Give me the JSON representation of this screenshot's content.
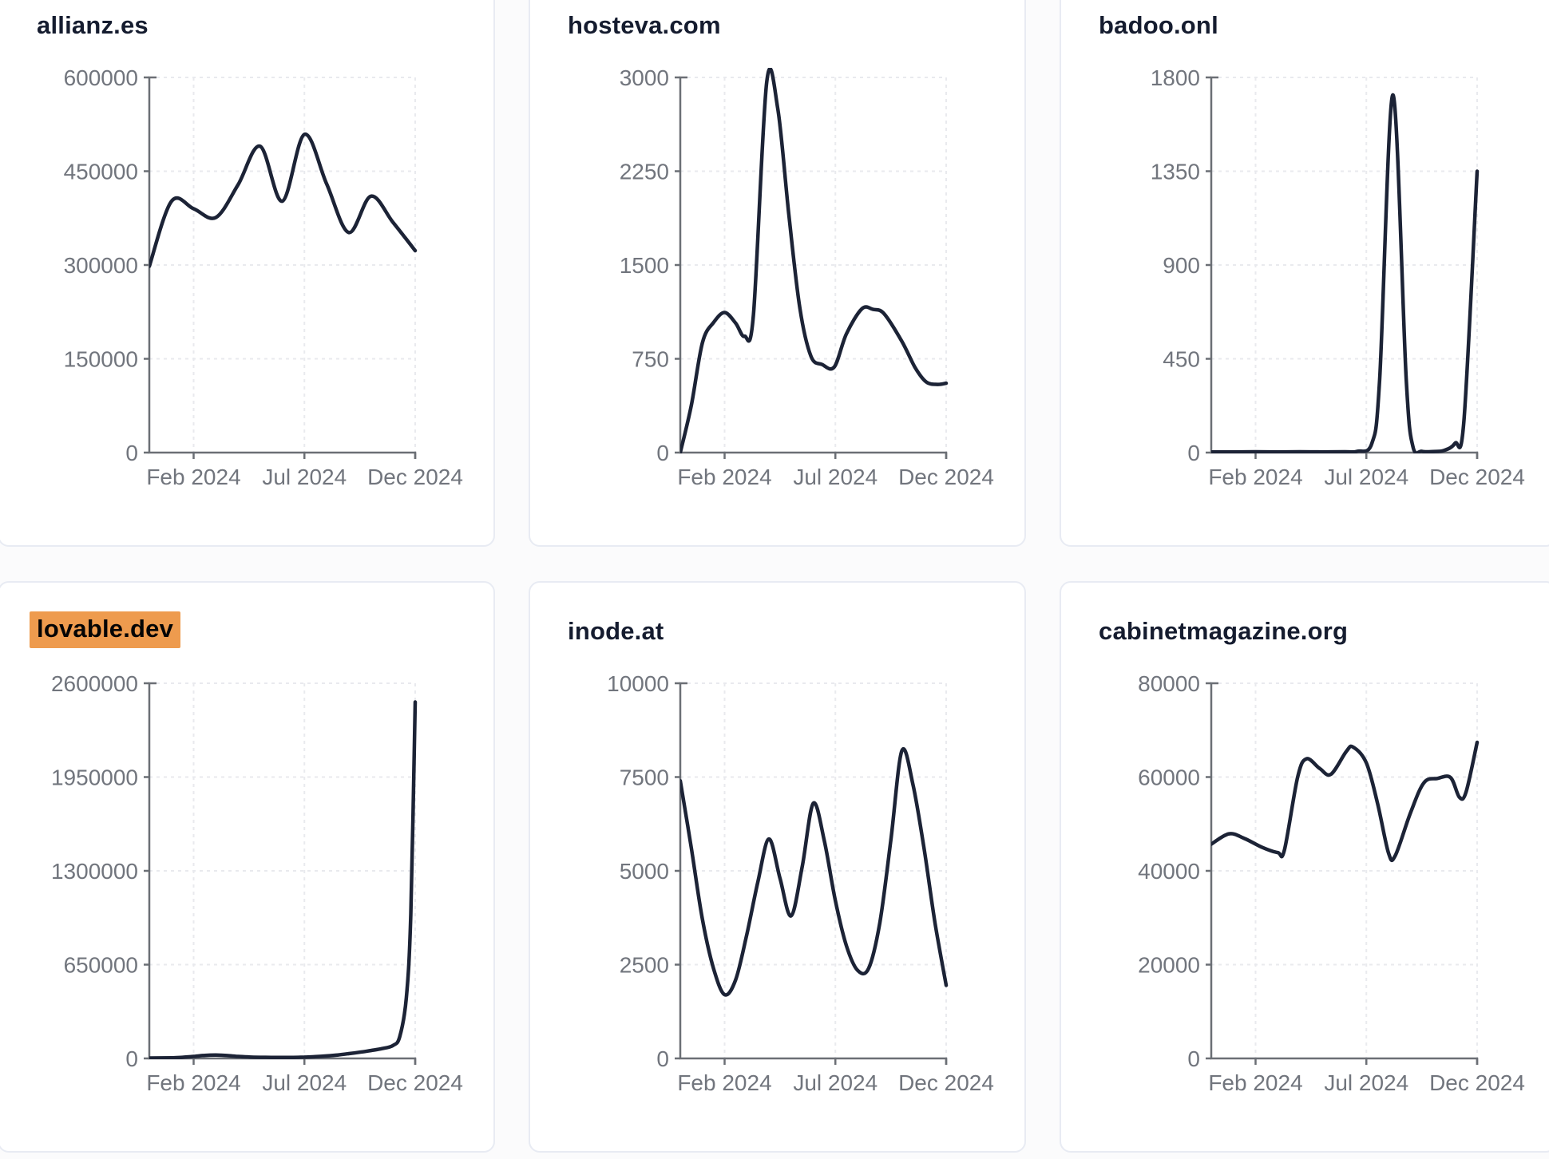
{
  "page": {
    "background_color": "#fbfbfc",
    "card_background": "#ffffff",
    "card_border_color": "#e8ebf3",
    "title_color": "#151c2f",
    "highlight_color": "#ee9b4e",
    "line_color": "#1c2336",
    "axis_color": "#6b6f75",
    "tick_label_color": "#71757d",
    "gridline_color": "#e9eaee"
  },
  "chart_data": [
    {
      "type": "line",
      "title": "allianz.es",
      "highlighted": false,
      "ylim": [
        0,
        600000
      ],
      "y_ticks": [
        600000,
        450000,
        300000,
        150000,
        0
      ],
      "x_ticks": [
        {
          "month": 2,
          "label": "Feb 2024"
        },
        {
          "month": 7,
          "label": "Jul 2024"
        },
        {
          "month": 12,
          "label": "Dec 2024"
        }
      ],
      "points": [
        [
          0,
          298000
        ],
        [
          1,
          402000
        ],
        [
          2,
          390000
        ],
        [
          3,
          376000
        ],
        [
          4,
          428000
        ],
        [
          5,
          490000
        ],
        [
          6,
          402000
        ],
        [
          7,
          509000
        ],
        [
          8,
          430000
        ],
        [
          9,
          352000
        ],
        [
          10,
          410000
        ],
        [
          11,
          368000
        ],
        [
          12,
          323000
        ]
      ]
    },
    {
      "type": "line",
      "title": "hosteva.com",
      "highlighted": false,
      "ylim": [
        0,
        3000
      ],
      "y_ticks": [
        3000,
        2250,
        1500,
        750,
        0
      ],
      "x_ticks": [
        {
          "month": 2,
          "label": "Feb 2024"
        },
        {
          "month": 7,
          "label": "Jul 2024"
        },
        {
          "month": 12,
          "label": "Dec 2024"
        }
      ],
      "points": [
        [
          0,
          0
        ],
        [
          0.5,
          380
        ],
        [
          1,
          880
        ],
        [
          1.5,
          1040
        ],
        [
          2,
          1120
        ],
        [
          2.5,
          1035
        ],
        [
          2.9,
          930
        ],
        [
          3.3,
          1100
        ],
        [
          3.9,
          2960
        ],
        [
          4.4,
          2750
        ],
        [
          4.9,
          1900
        ],
        [
          5.4,
          1150
        ],
        [
          5.9,
          770
        ],
        [
          6.4,
          705
        ],
        [
          6.95,
          685
        ],
        [
          7.5,
          950
        ],
        [
          8.2,
          1150
        ],
        [
          8.7,
          1145
        ],
        [
          9.2,
          1110
        ],
        [
          10,
          890
        ],
        [
          10.6,
          680
        ],
        [
          11.1,
          565
        ],
        [
          11.6,
          545
        ],
        [
          12,
          555
        ]
      ]
    },
    {
      "type": "line",
      "title": "badoo.onl",
      "highlighted": false,
      "ylim": [
        0,
        1800
      ],
      "y_ticks": [
        1800,
        1350,
        900,
        450,
        0
      ],
      "x_ticks": [
        {
          "month": 2,
          "label": "Feb 2024"
        },
        {
          "month": 7,
          "label": "Jul 2024"
        },
        {
          "month": 12,
          "label": "Dec 2024"
        }
      ],
      "points": [
        [
          0,
          3
        ],
        [
          1,
          3
        ],
        [
          2,
          4
        ],
        [
          3,
          3
        ],
        [
          4,
          4
        ],
        [
          5,
          3
        ],
        [
          6,
          4
        ],
        [
          6.6,
          6
        ],
        [
          7.25,
          45
        ],
        [
          7.6,
          350
        ],
        [
          8.2,
          1716
        ],
        [
          8.8,
          350
        ],
        [
          9.1,
          30
        ],
        [
          9.5,
          6
        ],
        [
          10,
          5
        ],
        [
          10.5,
          10
        ],
        [
          11,
          45
        ],
        [
          11.4,
          150
        ],
        [
          12,
          1350
        ]
      ]
    },
    {
      "type": "line",
      "title": "lovable.dev",
      "highlighted": true,
      "ylim": [
        0,
        2600000
      ],
      "y_ticks": [
        2600000,
        1950000,
        1300000,
        650000,
        0
      ],
      "x_ticks": [
        {
          "month": 2,
          "label": "Feb 2024"
        },
        {
          "month": 7,
          "label": "Jul 2024"
        },
        {
          "month": 12,
          "label": "Dec 2024"
        }
      ],
      "points": [
        [
          0,
          3000
        ],
        [
          0.5,
          3500
        ],
        [
          1,
          4500
        ],
        [
          1.5,
          8000
        ],
        [
          2,
          14000
        ],
        [
          2.5,
          21000
        ],
        [
          3,
          23000
        ],
        [
          3.5,
          20000
        ],
        [
          4,
          14000
        ],
        [
          4.5,
          10000
        ],
        [
          5,
          8000
        ],
        [
          5.5,
          7000
        ],
        [
          6,
          6500
        ],
        [
          6.5,
          7000
        ],
        [
          7,
          9000
        ],
        [
          7.5,
          12000
        ],
        [
          8,
          17000
        ],
        [
          8.5,
          24000
        ],
        [
          9,
          33000
        ],
        [
          9.5,
          43000
        ],
        [
          10,
          55000
        ],
        [
          10.5,
          68000
        ],
        [
          11,
          90000
        ],
        [
          11.3,
          150000
        ],
        [
          11.6,
          420000
        ],
        [
          11.8,
          1000000
        ],
        [
          12,
          2470000
        ]
      ]
    },
    {
      "type": "line",
      "title": "inode.at",
      "highlighted": false,
      "ylim": [
        0,
        10000
      ],
      "y_ticks": [
        10000,
        7500,
        5000,
        2500,
        0
      ],
      "x_ticks": [
        {
          "month": 2,
          "label": "Feb 2024"
        },
        {
          "month": 7,
          "label": "Jul 2024"
        },
        {
          "month": 12,
          "label": "Dec 2024"
        }
      ],
      "points": [
        [
          0,
          7400
        ],
        [
          0.5,
          5600
        ],
        [
          1,
          3700
        ],
        [
          1.5,
          2400
        ],
        [
          2,
          1700
        ],
        [
          2.5,
          2100
        ],
        [
          3,
          3300
        ],
        [
          3.5,
          4700
        ],
        [
          4,
          5850
        ],
        [
          4.5,
          4800
        ],
        [
          5,
          3800
        ],
        [
          5.5,
          5100
        ],
        [
          6,
          6800
        ],
        [
          6.5,
          5800
        ],
        [
          7,
          4200
        ],
        [
          7.5,
          3000
        ],
        [
          8,
          2350
        ],
        [
          8.5,
          2400
        ],
        [
          9,
          3600
        ],
        [
          9.5,
          5800
        ],
        [
          10,
          8200
        ],
        [
          10.5,
          7300
        ],
        [
          11,
          5600
        ],
        [
          11.5,
          3600
        ],
        [
          12,
          1950
        ]
      ]
    },
    {
      "type": "line",
      "title": "cabinetmagazine.org",
      "highlighted": false,
      "ylim": [
        0,
        80000
      ],
      "y_ticks": [
        80000,
        60000,
        40000,
        20000,
        0
      ],
      "x_ticks": [
        {
          "month": 2,
          "label": "Feb 2024"
        },
        {
          "month": 7,
          "label": "Jul 2024"
        },
        {
          "month": 12,
          "label": "Dec 2024"
        }
      ],
      "points": [
        [
          0,
          45700
        ],
        [
          0.8,
          47900
        ],
        [
          1.5,
          46900
        ],
        [
          2.3,
          45000
        ],
        [
          3,
          43900
        ],
        [
          3.3,
          44400
        ],
        [
          3.9,
          60000
        ],
        [
          4.3,
          63900
        ],
        [
          4.9,
          61800
        ],
        [
          5.4,
          60600
        ],
        [
          6.1,
          65500
        ],
        [
          6.4,
          66400
        ],
        [
          7,
          63000
        ],
        [
          7.5,
          54500
        ],
        [
          8,
          43800
        ],
        [
          8.3,
          43200
        ],
        [
          9,
          52500
        ],
        [
          9.6,
          58800
        ],
        [
          10.2,
          59700
        ],
        [
          10.8,
          59900
        ],
        [
          11.2,
          55700
        ],
        [
          11.5,
          56800
        ],
        [
          12,
          67400
        ]
      ]
    }
  ]
}
